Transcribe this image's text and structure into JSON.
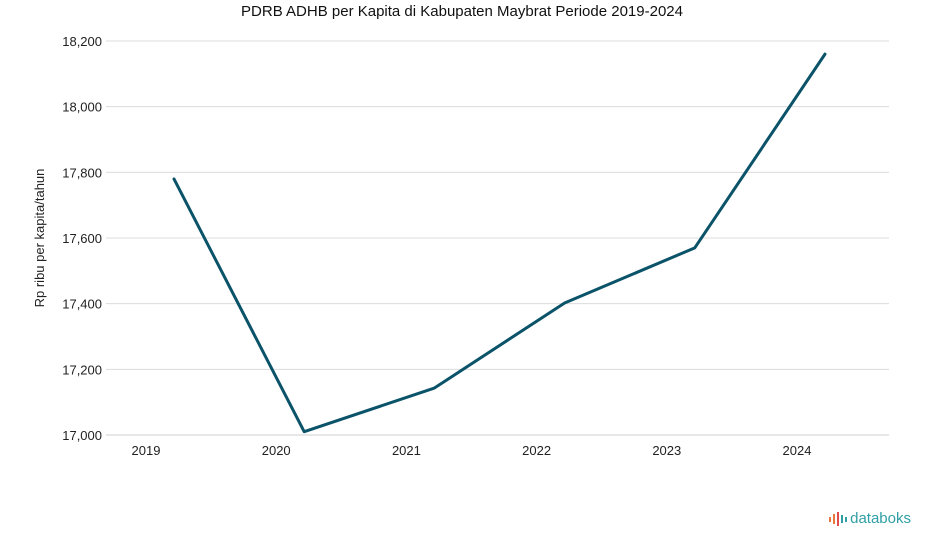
{
  "chart_data": {
    "type": "line",
    "title": "PDRB ADHB per Kapita di Kabupaten Maybrat Periode 2019-2024",
    "xlabel": "",
    "ylabel": "Rp ribu per kapita/tahun",
    "categories": [
      "2019",
      "2020",
      "2021",
      "2022",
      "2023",
      "2024"
    ],
    "series": [
      {
        "values": [
          17780,
          17010,
          17143,
          17402,
          17570,
          18160
        ]
      }
    ],
    "ylim": [
      17000,
      18200
    ],
    "yticks": [
      17000,
      17200,
      17400,
      17600,
      17800,
      18000,
      18200
    ],
    "ytick_labels": [
      "17,000",
      "17,200",
      "17,400",
      "17,600",
      "17,800",
      "18,000",
      "18,200"
    ],
    "grid": true,
    "line_color": "#0b5369"
  },
  "brand": {
    "name": "databoks",
    "icon": "databoks-logo-icon",
    "color": "#2f9fa5"
  }
}
